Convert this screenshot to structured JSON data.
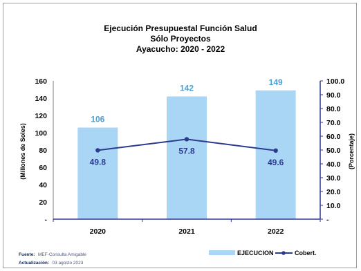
{
  "chart_data": {
    "type": "bar",
    "title_lines": [
      "Ejecución Presupuestal Función Salud",
      "Sólo Proyectos",
      "Ayacucho: 2020 - 2022"
    ],
    "categories": [
      "2020",
      "2021",
      "2022"
    ],
    "series": [
      {
        "name": "EJECUCION",
        "type": "bar",
        "axis": "left",
        "values": [
          106,
          142,
          149
        ],
        "labels": [
          "106",
          "142",
          "149"
        ],
        "color": "#a9d6f5",
        "label_color": "#49a3d8"
      },
      {
        "name": "Cobert.",
        "type": "line",
        "axis": "right",
        "values": [
          49.8,
          57.8,
          49.6
        ],
        "labels": [
          "49.8",
          "57.8",
          "49.6"
        ],
        "color": "#2b3a8f"
      }
    ],
    "ylabel": "(Millones de Soles)",
    "y2label": "(Porcentaje)",
    "ylim": [
      0,
      160
    ],
    "y2lim": [
      0,
      100
    ],
    "y_ticks": [
      "-",
      "20",
      "40",
      "60",
      "80",
      "100",
      "120",
      "140",
      "160"
    ],
    "y2_ticks": [
      "-",
      "10.0",
      "20.0",
      "30.0",
      "40.0",
      "50.0",
      "60.0",
      "70.0",
      "80.0",
      "90.0",
      "100.0"
    ],
    "y_axis_color": "#7f7f7f",
    "y2_axis_color": "#2b3a8f",
    "legend": "bottom-right"
  },
  "notes": {
    "source_label": "Fuente:",
    "source_text": "MEF-Consulta Amigable",
    "update_label": "Actualización:",
    "update_text": "03 agosto 2023"
  }
}
